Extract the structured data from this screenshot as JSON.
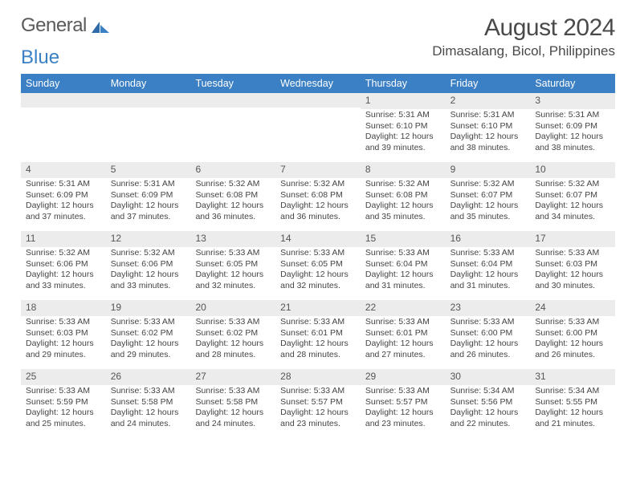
{
  "logo": {
    "word1": "General",
    "word2": "Blue"
  },
  "title": "August 2024",
  "location": "Dimasalang, Bicol, Philippines",
  "colors": {
    "header_bg": "#3b7fc4",
    "header_text": "#ffffff",
    "daynum_bg": "#ececec",
    "body_text": "#444444",
    "page_bg": "#ffffff",
    "logo_gray": "#5a5a5a",
    "logo_blue": "#3b7fc4"
  },
  "typography": {
    "month_title_fontsize": 30,
    "location_fontsize": 17,
    "weekday_fontsize": 12.5,
    "daynum_fontsize": 12,
    "body_fontsize": 10.5
  },
  "weekdays": [
    "Sunday",
    "Monday",
    "Tuesday",
    "Wednesday",
    "Thursday",
    "Friday",
    "Saturday"
  ],
  "weeks": [
    [
      {
        "n": "",
        "sunrise": "",
        "sunset": "",
        "daylight": ""
      },
      {
        "n": "",
        "sunrise": "",
        "sunset": "",
        "daylight": ""
      },
      {
        "n": "",
        "sunrise": "",
        "sunset": "",
        "daylight": ""
      },
      {
        "n": "",
        "sunrise": "",
        "sunset": "",
        "daylight": ""
      },
      {
        "n": "1",
        "sunrise": "Sunrise: 5:31 AM",
        "sunset": "Sunset: 6:10 PM",
        "daylight": "Daylight: 12 hours and 39 minutes."
      },
      {
        "n": "2",
        "sunrise": "Sunrise: 5:31 AM",
        "sunset": "Sunset: 6:10 PM",
        "daylight": "Daylight: 12 hours and 38 minutes."
      },
      {
        "n": "3",
        "sunrise": "Sunrise: 5:31 AM",
        "sunset": "Sunset: 6:09 PM",
        "daylight": "Daylight: 12 hours and 38 minutes."
      }
    ],
    [
      {
        "n": "4",
        "sunrise": "Sunrise: 5:31 AM",
        "sunset": "Sunset: 6:09 PM",
        "daylight": "Daylight: 12 hours and 37 minutes."
      },
      {
        "n": "5",
        "sunrise": "Sunrise: 5:31 AM",
        "sunset": "Sunset: 6:09 PM",
        "daylight": "Daylight: 12 hours and 37 minutes."
      },
      {
        "n": "6",
        "sunrise": "Sunrise: 5:32 AM",
        "sunset": "Sunset: 6:08 PM",
        "daylight": "Daylight: 12 hours and 36 minutes."
      },
      {
        "n": "7",
        "sunrise": "Sunrise: 5:32 AM",
        "sunset": "Sunset: 6:08 PM",
        "daylight": "Daylight: 12 hours and 36 minutes."
      },
      {
        "n": "8",
        "sunrise": "Sunrise: 5:32 AM",
        "sunset": "Sunset: 6:08 PM",
        "daylight": "Daylight: 12 hours and 35 minutes."
      },
      {
        "n": "9",
        "sunrise": "Sunrise: 5:32 AM",
        "sunset": "Sunset: 6:07 PM",
        "daylight": "Daylight: 12 hours and 35 minutes."
      },
      {
        "n": "10",
        "sunrise": "Sunrise: 5:32 AM",
        "sunset": "Sunset: 6:07 PM",
        "daylight": "Daylight: 12 hours and 34 minutes."
      }
    ],
    [
      {
        "n": "11",
        "sunrise": "Sunrise: 5:32 AM",
        "sunset": "Sunset: 6:06 PM",
        "daylight": "Daylight: 12 hours and 33 minutes."
      },
      {
        "n": "12",
        "sunrise": "Sunrise: 5:32 AM",
        "sunset": "Sunset: 6:06 PM",
        "daylight": "Daylight: 12 hours and 33 minutes."
      },
      {
        "n": "13",
        "sunrise": "Sunrise: 5:33 AM",
        "sunset": "Sunset: 6:05 PM",
        "daylight": "Daylight: 12 hours and 32 minutes."
      },
      {
        "n": "14",
        "sunrise": "Sunrise: 5:33 AM",
        "sunset": "Sunset: 6:05 PM",
        "daylight": "Daylight: 12 hours and 32 minutes."
      },
      {
        "n": "15",
        "sunrise": "Sunrise: 5:33 AM",
        "sunset": "Sunset: 6:04 PM",
        "daylight": "Daylight: 12 hours and 31 minutes."
      },
      {
        "n": "16",
        "sunrise": "Sunrise: 5:33 AM",
        "sunset": "Sunset: 6:04 PM",
        "daylight": "Daylight: 12 hours and 31 minutes."
      },
      {
        "n": "17",
        "sunrise": "Sunrise: 5:33 AM",
        "sunset": "Sunset: 6:03 PM",
        "daylight": "Daylight: 12 hours and 30 minutes."
      }
    ],
    [
      {
        "n": "18",
        "sunrise": "Sunrise: 5:33 AM",
        "sunset": "Sunset: 6:03 PM",
        "daylight": "Daylight: 12 hours and 29 minutes."
      },
      {
        "n": "19",
        "sunrise": "Sunrise: 5:33 AM",
        "sunset": "Sunset: 6:02 PM",
        "daylight": "Daylight: 12 hours and 29 minutes."
      },
      {
        "n": "20",
        "sunrise": "Sunrise: 5:33 AM",
        "sunset": "Sunset: 6:02 PM",
        "daylight": "Daylight: 12 hours and 28 minutes."
      },
      {
        "n": "21",
        "sunrise": "Sunrise: 5:33 AM",
        "sunset": "Sunset: 6:01 PM",
        "daylight": "Daylight: 12 hours and 28 minutes."
      },
      {
        "n": "22",
        "sunrise": "Sunrise: 5:33 AM",
        "sunset": "Sunset: 6:01 PM",
        "daylight": "Daylight: 12 hours and 27 minutes."
      },
      {
        "n": "23",
        "sunrise": "Sunrise: 5:33 AM",
        "sunset": "Sunset: 6:00 PM",
        "daylight": "Daylight: 12 hours and 26 minutes."
      },
      {
        "n": "24",
        "sunrise": "Sunrise: 5:33 AM",
        "sunset": "Sunset: 6:00 PM",
        "daylight": "Daylight: 12 hours and 26 minutes."
      }
    ],
    [
      {
        "n": "25",
        "sunrise": "Sunrise: 5:33 AM",
        "sunset": "Sunset: 5:59 PM",
        "daylight": "Daylight: 12 hours and 25 minutes."
      },
      {
        "n": "26",
        "sunrise": "Sunrise: 5:33 AM",
        "sunset": "Sunset: 5:58 PM",
        "daylight": "Daylight: 12 hours and 24 minutes."
      },
      {
        "n": "27",
        "sunrise": "Sunrise: 5:33 AM",
        "sunset": "Sunset: 5:58 PM",
        "daylight": "Daylight: 12 hours and 24 minutes."
      },
      {
        "n": "28",
        "sunrise": "Sunrise: 5:33 AM",
        "sunset": "Sunset: 5:57 PM",
        "daylight": "Daylight: 12 hours and 23 minutes."
      },
      {
        "n": "29",
        "sunrise": "Sunrise: 5:33 AM",
        "sunset": "Sunset: 5:57 PM",
        "daylight": "Daylight: 12 hours and 23 minutes."
      },
      {
        "n": "30",
        "sunrise": "Sunrise: 5:34 AM",
        "sunset": "Sunset: 5:56 PM",
        "daylight": "Daylight: 12 hours and 22 minutes."
      },
      {
        "n": "31",
        "sunrise": "Sunrise: 5:34 AM",
        "sunset": "Sunset: 5:55 PM",
        "daylight": "Daylight: 12 hours and 21 minutes."
      }
    ]
  ]
}
